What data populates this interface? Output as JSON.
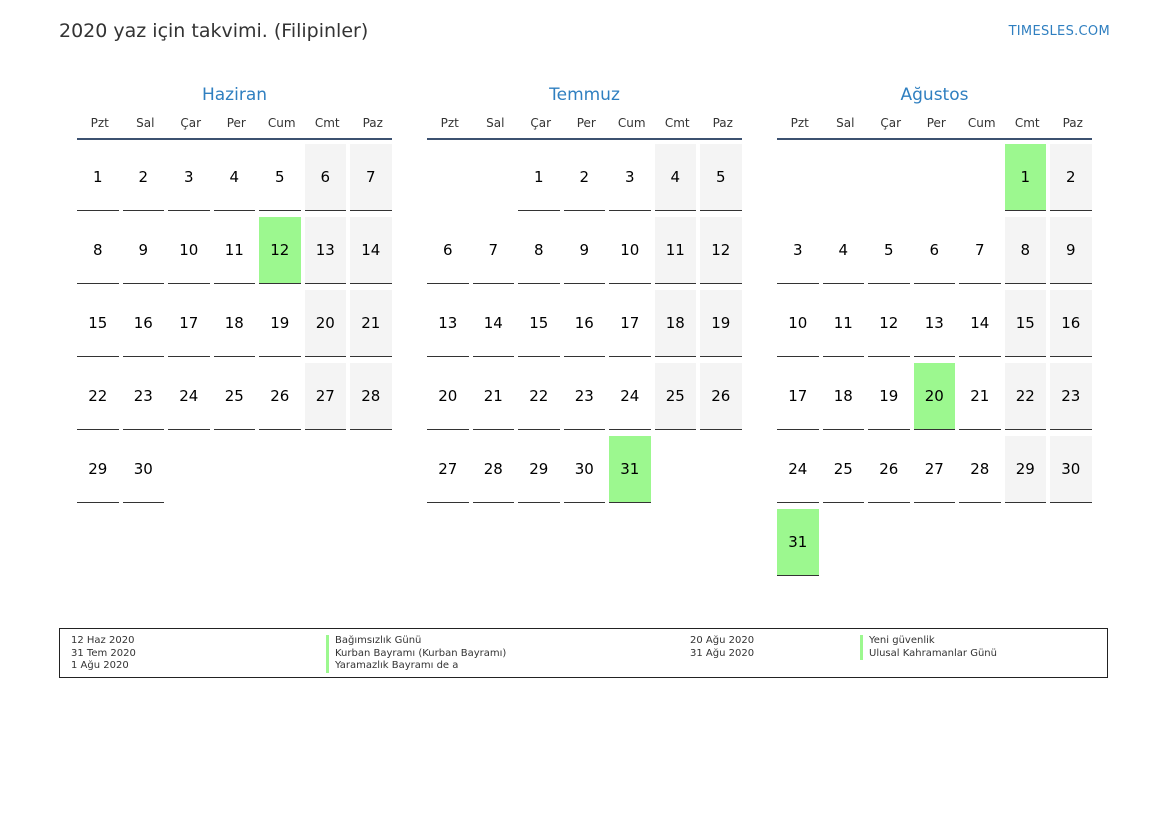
{
  "header": {
    "title": "2020 yaz için takvimi. (Filipinler)",
    "site": "TIMESLES.COM"
  },
  "weekdays": [
    "Pzt",
    "Sal",
    "Çar",
    "Per",
    "Cum",
    "Cmt",
    "Paz"
  ],
  "colors": {
    "accent": "#2f7fc0",
    "holiday": "#9cf88f",
    "weekend": "#f4f4f4"
  },
  "months": [
    {
      "name": "Haziran",
      "offset": 0,
      "days": 30,
      "holidays": [
        12
      ]
    },
    {
      "name": "Temmuz",
      "offset": 2,
      "days": 31,
      "holidays": [
        31
      ]
    },
    {
      "name": "Ağustos",
      "offset": 5,
      "days": 31,
      "holidays": [
        1,
        20,
        31
      ]
    }
  ],
  "legend": {
    "col1_dates": [
      "12 Haz 2020",
      "31 Tem 2020",
      "1 Ağu 2020"
    ],
    "col1_names": [
      "Bağımsızlık Günü",
      "Kurban Bayramı (Kurban Bayramı)",
      "Yaramazlık Bayramı de a"
    ],
    "col2_dates": [
      "20 Ağu 2020",
      "31 Ağu 2020"
    ],
    "col2_names": [
      "Yeni güvenlik",
      "Ulusal Kahramanlar Günü"
    ]
  }
}
